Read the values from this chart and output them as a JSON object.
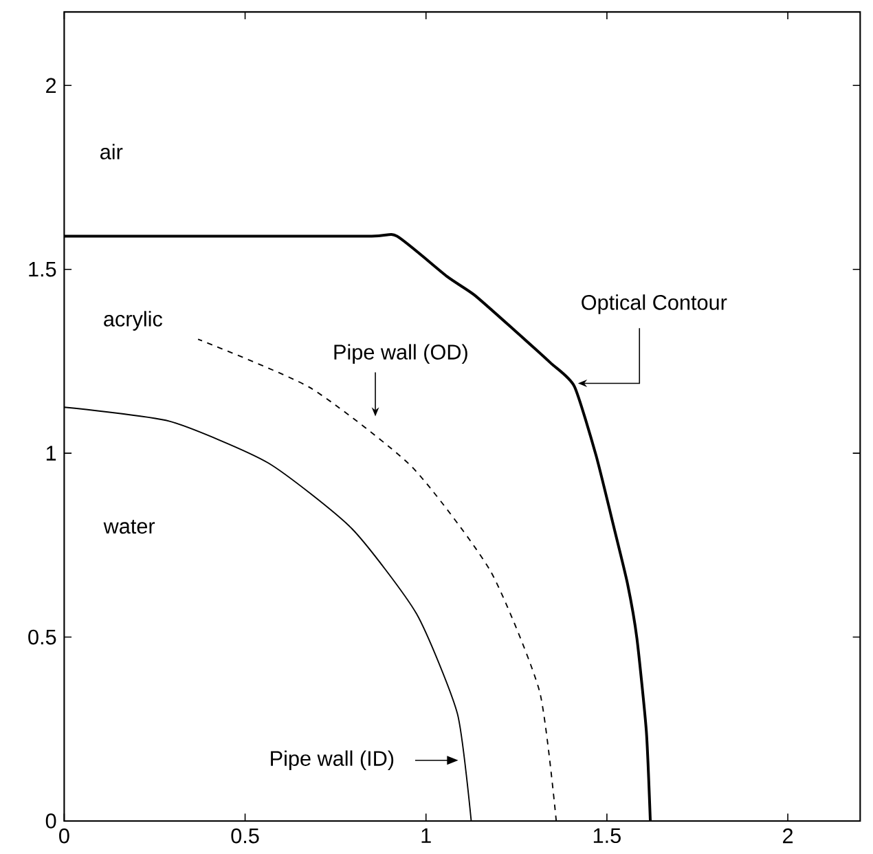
{
  "chart_data": {
    "type": "line",
    "xlim": [
      0,
      2.2
    ],
    "ylim": [
      0,
      2.2
    ],
    "xticks": [
      0,
      0.5,
      1,
      1.5,
      2
    ],
    "yticks": [
      0,
      0.5,
      1,
      1.5,
      2
    ],
    "marker": "none",
    "series": [
      {
        "color": "#000000",
        "line_style": "solid",
        "x": [
          1.125,
          1.087,
          0.974,
          0.795,
          0.563,
          0.291,
          0
        ],
        "values": [
          0,
          0.291,
          0.563,
          0.795,
          0.974,
          1.087,
          1.125
        ]
      },
      {
        "color": "#000000",
        "line_style": "dashed",
        "x": [
          1.36,
          1.314,
          1.178,
          0.962,
          0.68,
          0.37
        ],
        "values": [
          0,
          0.352,
          0.68,
          0.962,
          1.178,
          1.31
        ]
      },
      {
        "color": "#000000",
        "line_style": "solid",
        "x": [
          0,
          0.46,
          0.85,
          0.92,
          1.059,
          1.134,
          1.246,
          1.345,
          1.41,
          1.47,
          1.52,
          1.557,
          1.583,
          1.609,
          1.62
        ],
        "values": [
          1.59,
          1.59,
          1.59,
          1.59,
          1.48,
          1.43,
          1.333,
          1.245,
          1.182,
          0.994,
          0.796,
          0.645,
          0.496,
          0.244,
          0
        ]
      }
    ],
    "annotations": [
      "air",
      "acrylic",
      "water",
      "Pipe wall (OD)",
      "Pipe wall (ID)",
      {
        "text": "Optical Contour",
        "x": 1.42,
        "y": 1.19
      }
    ]
  }
}
